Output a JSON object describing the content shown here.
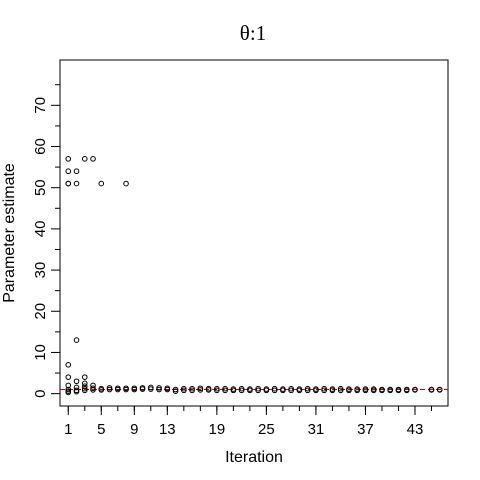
{
  "chart_data": {
    "type": "scatter",
    "title": "θ:1",
    "xlabel": "Iteration",
    "ylabel": "Parameter estimate",
    "xlim": [
      0,
      47
    ],
    "ylim": [
      -3,
      81
    ],
    "x_ticks_minor": [
      1,
      3,
      5,
      7,
      9,
      11,
      13,
      15,
      17,
      19,
      21,
      23,
      25,
      27,
      29,
      31,
      33,
      35,
      37,
      39,
      41,
      43,
      45
    ],
    "x_tick_labels": [
      "1",
      "5",
      "9",
      "13",
      "19",
      "25",
      "31",
      "37",
      "43"
    ],
    "x_tick_label_values": [
      1,
      5,
      9,
      13,
      19,
      25,
      31,
      37,
      43
    ],
    "y_ticks_major": [
      0,
      10,
      20,
      30,
      40,
      50,
      60,
      70
    ],
    "y_ticks_minor": [
      5,
      15,
      25,
      35,
      45,
      55,
      65,
      75
    ],
    "grid": false,
    "reference_line": {
      "y": 1,
      "color": "#cc0000",
      "style": "dashed"
    },
    "point_style": "open-circle",
    "points": [
      [
        1,
        57
      ],
      [
        1,
        54
      ],
      [
        1,
        51
      ],
      [
        1,
        51
      ],
      [
        1,
        7
      ],
      [
        1,
        4
      ],
      [
        1,
        2
      ],
      [
        1,
        1
      ],
      [
        1,
        0.6
      ],
      [
        1,
        0.3
      ],
      [
        2,
        54
      ],
      [
        2,
        51
      ],
      [
        2,
        13
      ],
      [
        2,
        3
      ],
      [
        2,
        1.5
      ],
      [
        2,
        0.8
      ],
      [
        2,
        0.5
      ],
      [
        3,
        57
      ],
      [
        3,
        4
      ],
      [
        3,
        2.5
      ],
      [
        3,
        1.8
      ],
      [
        3,
        1.2
      ],
      [
        3,
        0.8
      ],
      [
        4,
        57
      ],
      [
        4,
        2
      ],
      [
        4,
        1.3
      ],
      [
        4,
        0.9
      ],
      [
        5,
        51
      ],
      [
        5,
        1.2
      ],
      [
        5,
        0.9
      ],
      [
        6,
        1.4
      ],
      [
        6,
        1
      ],
      [
        7,
        1.3
      ],
      [
        7,
        1
      ],
      [
        8,
        51
      ],
      [
        8,
        1.3
      ],
      [
        8,
        1
      ],
      [
        9,
        1.3
      ],
      [
        9,
        1
      ],
      [
        10,
        1.4
      ],
      [
        10,
        1.1
      ],
      [
        11,
        1.5
      ],
      [
        11,
        1.1
      ],
      [
        12,
        1.4
      ],
      [
        12,
        1
      ],
      [
        13,
        1.3
      ],
      [
        13,
        1
      ],
      [
        14,
        1
      ],
      [
        14,
        0.6
      ],
      [
        15,
        1.2
      ],
      [
        15,
        0.8
      ],
      [
        16,
        1.2
      ],
      [
        16,
        0.8
      ],
      [
        17,
        1.3
      ],
      [
        17,
        0.9
      ],
      [
        18,
        1.2
      ],
      [
        18,
        0.9
      ],
      [
        19,
        1.2
      ],
      [
        19,
        0.8
      ],
      [
        20,
        1.2
      ],
      [
        20,
        0.8
      ],
      [
        21,
        1.1
      ],
      [
        21,
        0.8
      ],
      [
        22,
        1.2
      ],
      [
        22,
        0.8
      ],
      [
        23,
        1.1
      ],
      [
        23,
        0.8
      ],
      [
        24,
        1.2
      ],
      [
        24,
        0.8
      ],
      [
        25,
        1.1
      ],
      [
        25,
        0.8
      ],
      [
        26,
        1.2
      ],
      [
        26,
        0.8
      ],
      [
        27,
        1.1
      ],
      [
        27,
        0.8
      ],
      [
        28,
        1.2
      ],
      [
        28,
        0.8
      ],
      [
        29,
        1.1
      ],
      [
        29,
        0.8
      ],
      [
        30,
        1.2
      ],
      [
        30,
        0.8
      ],
      [
        31,
        1.1
      ],
      [
        31,
        0.8
      ],
      [
        32,
        1.2
      ],
      [
        32,
        0.8
      ],
      [
        33,
        1.1
      ],
      [
        33,
        0.8
      ],
      [
        34,
        1.2
      ],
      [
        34,
        0.8
      ],
      [
        35,
        1.1
      ],
      [
        35,
        0.8
      ],
      [
        36,
        1.1
      ],
      [
        36,
        0.8
      ],
      [
        37,
        1.1
      ],
      [
        37,
        0.8
      ],
      [
        38,
        1.1
      ],
      [
        38,
        0.8
      ],
      [
        39,
        1
      ],
      [
        39,
        0.8
      ],
      [
        40,
        1
      ],
      [
        40,
        0.8
      ],
      [
        41,
        1
      ],
      [
        41,
        0.8
      ],
      [
        42,
        1
      ],
      [
        42,
        0.8
      ],
      [
        43,
        1
      ],
      [
        43,
        0.9
      ],
      [
        45,
        1
      ],
      [
        45,
        0.9
      ],
      [
        46,
        1
      ],
      [
        46,
        0.9
      ]
    ]
  }
}
